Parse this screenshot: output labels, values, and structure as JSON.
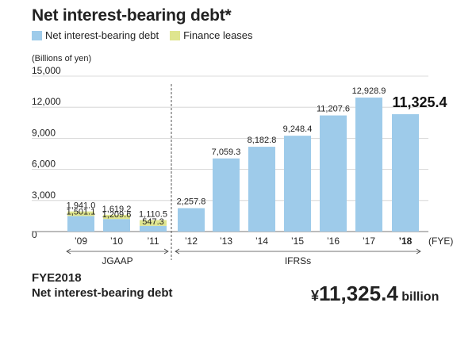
{
  "header": {
    "title": "Net interest-bearing debt*"
  },
  "legend": [
    {
      "label": "Net interest-bearing debt",
      "color": "#9ecbea"
    },
    {
      "label": "Finance leases",
      "color": "#dfe58f"
    }
  ],
  "chart_data": {
    "type": "bar",
    "stacked": true,
    "ylabel": "(Billions of yen)",
    "xlabel": "(FYE)",
    "ylim": [
      0,
      15000
    ],
    "yticks": [
      "0",
      "3,000",
      "6,000",
      "9,000",
      "12,000",
      "15,000"
    ],
    "categories": [
      "’09",
      "’10",
      "’11",
      "’12",
      "’13",
      "’14",
      "’15",
      "’16",
      "’17",
      "’18"
    ],
    "series": [
      {
        "name": "Net interest-bearing debt",
        "color": "#9ecbea",
        "values": [
          1501.1,
          1209.6,
          547.3,
          2257.8,
          7059.3,
          8182.8,
          9248.4,
          11207.6,
          12928.9,
          11325.4
        ]
      },
      {
        "name": "Finance leases",
        "color": "#dfe58f",
        "values": [
          439.9,
          409.6,
          563.2,
          0,
          0,
          0,
          0,
          0,
          0,
          0
        ]
      }
    ],
    "labels": {
      "base": [
        "1,501.1",
        "1,209.6",
        "547.3",
        "2,257.8",
        "7,059.3",
        "8,182.8",
        "9,248.4",
        "11,207.6",
        "12,928.9",
        "11,325.4"
      ],
      "total": [
        "1,941.0",
        "1,619.2",
        "1,110.5"
      ]
    },
    "periods": [
      {
        "label": "JGAAP",
        "from": 0,
        "to": 2
      },
      {
        "label": "IFRSs",
        "from": 3,
        "to": 9
      }
    ],
    "highlight_index": 9
  },
  "summary": {
    "fye_label": "FYE2018",
    "metric_label": "Net interest-bearing debt",
    "currency": "¥",
    "value": "11,325.4",
    "unit": "billion"
  }
}
